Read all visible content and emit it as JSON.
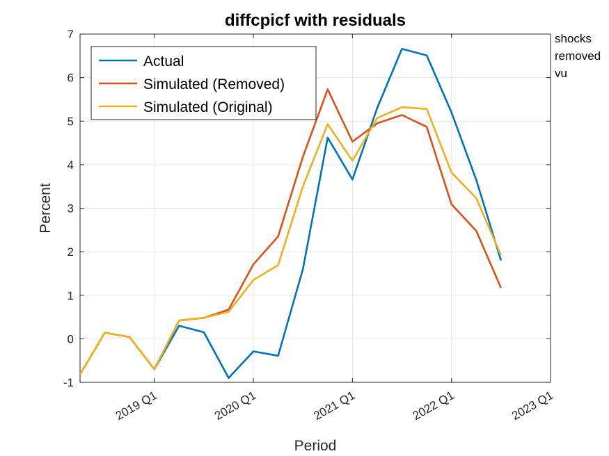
{
  "chart_data": {
    "type": "line",
    "title": "diffcpicf with residuals",
    "xlabel": "Period",
    "ylabel": "Percent",
    "ylim": [
      -1,
      7
    ],
    "yticks": [
      -1,
      0,
      1,
      2,
      3,
      4,
      5,
      6,
      7
    ],
    "grid": true,
    "legend_position": "top-left",
    "x": [
      "2018 Q2",
      "2018 Q3",
      "2018 Q4",
      "2019 Q1",
      "2019 Q2",
      "2019 Q3",
      "2019 Q4",
      "2020 Q1",
      "2020 Q2",
      "2020 Q3",
      "2020 Q4",
      "2021 Q1",
      "2021 Q2",
      "2021 Q3",
      "2021 Q4",
      "2022 Q1",
      "2022 Q2",
      "2022 Q3",
      "2022 Q4",
      "2023 Q1"
    ],
    "x_ticks": [
      "2019 Q1",
      "2020 Q1",
      "2021 Q1",
      "2022 Q1",
      "2023 Q1"
    ],
    "series": [
      {
        "name": "Actual",
        "color": "#0072BD",
        "values": [
          null,
          null,
          null,
          -0.7,
          0.3,
          0.15,
          -0.9,
          -0.29,
          -0.39,
          1.6,
          4.62,
          3.66,
          5.3,
          6.66,
          6.51,
          5.2,
          3.65,
          1.8,
          null,
          null
        ]
      },
      {
        "name": "Simulated (Removed)",
        "color": "#D95319",
        "values": [
          -0.82,
          0.14,
          0.04,
          -0.7,
          0.42,
          0.48,
          0.67,
          1.71,
          2.35,
          4.18,
          5.73,
          4.53,
          4.95,
          5.14,
          4.87,
          3.09,
          2.48,
          1.17,
          null,
          null
        ]
      },
      {
        "name": "Simulated (Original)",
        "color": "#EDB120",
        "values": [
          -0.82,
          0.14,
          0.04,
          -0.7,
          0.42,
          0.48,
          0.62,
          1.35,
          1.69,
          3.5,
          4.93,
          4.09,
          5.07,
          5.32,
          5.28,
          3.82,
          3.23,
          1.92,
          null,
          null
        ]
      }
    ],
    "annotation_lines": [
      "shocks",
      "removed",
      "vu"
    ]
  }
}
